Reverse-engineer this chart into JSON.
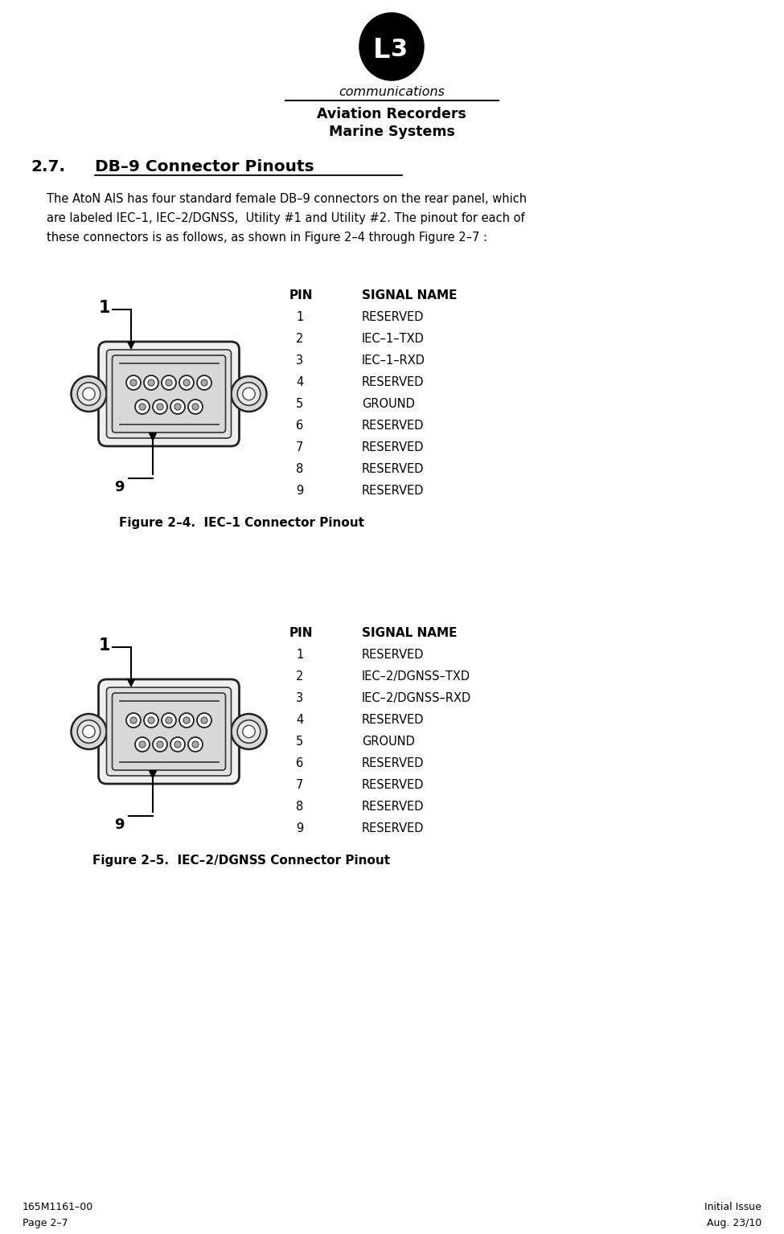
{
  "bg_color": "#ffffff",
  "communications_text": "communications",
  "header_line1": "Aviation Recorders",
  "header_line2": "Marine Systems",
  "section_num": "2.7.",
  "section_title": "DB–9 Connector Pinouts",
  "body_line1": "The AtoN AIS has four standard female DB–9 connectors on the rear panel, which",
  "body_line2": "are labeled IEC–1, IEC–2/DGNSS,  Utility #1 and Utility #2. The pinout for each of",
  "body_line3": "these connectors is as follows, as shown in Figure 2–4 through Figure 2–7 :",
  "figure1_caption": "Figure 2–4.  IEC–1 Connector Pinout",
  "figure2_caption": "Figure 2–5.  IEC–2/DGNSS Connector Pinout",
  "pin_header_col1": "PIN",
  "pin_header_col2": "SIGNAL NAME",
  "figure1_pins": [
    [
      "1",
      "RESERVED"
    ],
    [
      "2",
      "IEC–1–TXD"
    ],
    [
      "3",
      "IEC–1–RXD"
    ],
    [
      "4",
      "RESERVED"
    ],
    [
      "5",
      "GROUND"
    ],
    [
      "6",
      "RESERVED"
    ],
    [
      "7",
      "RESERVED"
    ],
    [
      "8",
      "RESERVED"
    ],
    [
      "9",
      "RESERVED"
    ]
  ],
  "figure2_pins": [
    [
      "1",
      "RESERVED"
    ],
    [
      "2",
      "IEC–2/DGNSS–TXD"
    ],
    [
      "3",
      "IEC–2/DGNSS–RXD"
    ],
    [
      "4",
      "RESERVED"
    ],
    [
      "5",
      "GROUND"
    ],
    [
      "6",
      "RESERVED"
    ],
    [
      "7",
      "RESERVED"
    ],
    [
      "8",
      "RESERVED"
    ],
    [
      "9",
      "RESERVED"
    ]
  ],
  "footer_left1": "165M1161–00",
  "footer_left2": "Page 2–7",
  "footer_right1": "Initial Issue",
  "footer_right2": "Aug. 23/10"
}
